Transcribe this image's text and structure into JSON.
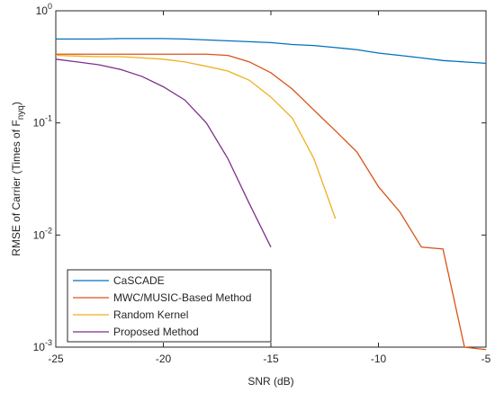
{
  "chart_data": {
    "type": "line",
    "xlabel": "SNR (dB)",
    "ylabel": [
      "RMSE of Carrier (Times of F",
      "nyq",
      ")"
    ],
    "x": [
      -25,
      -24,
      -23,
      -22,
      -21,
      -20,
      -19,
      -18,
      -17,
      -16,
      -15,
      -14,
      -13,
      -12,
      -11,
      -10,
      -9,
      -8,
      -7,
      -6,
      -5
    ],
    "series": [
      {
        "name": "CaSCADE",
        "color": "#0072bd",
        "values": [
          0.56,
          0.56,
          0.56,
          0.565,
          0.565,
          0.565,
          0.56,
          0.55,
          0.54,
          0.53,
          0.52,
          0.5,
          0.49,
          0.47,
          0.45,
          0.42,
          0.4,
          0.38,
          0.36,
          0.35,
          0.34
        ]
      },
      {
        "name": "MWC/MUSIC-Based Method",
        "color": "#d95319",
        "values": [
          0.41,
          0.41,
          0.41,
          0.41,
          0.41,
          0.41,
          0.41,
          0.41,
          0.4,
          0.35,
          0.28,
          0.2,
          0.13,
          0.085,
          0.055,
          0.027,
          0.016,
          0.0078,
          0.0075,
          0.001,
          0.00095
        ]
      },
      {
        "name": "Random Kernel",
        "color": "#edb120",
        "values": [
          0.4,
          0.395,
          0.39,
          0.39,
          0.38,
          0.37,
          0.35,
          0.32,
          0.29,
          0.24,
          0.17,
          0.11,
          0.048,
          0.014,
          null,
          null,
          null,
          null,
          null,
          null,
          null
        ]
      },
      {
        "name": "Proposed Method",
        "color": "#7e2f8e",
        "values": [
          0.37,
          0.35,
          0.33,
          0.3,
          0.26,
          0.21,
          0.16,
          0.1,
          0.048,
          0.019,
          0.0078,
          null,
          null,
          null,
          null,
          null,
          null,
          null,
          null,
          null,
          null
        ]
      }
    ],
    "xlim": [
      -25,
      -5
    ],
    "xticks": [
      -25,
      -20,
      -15,
      -10,
      -5
    ],
    "ylim": [
      0.001,
      1
    ],
    "yticks": [
      {
        "value": 0.001,
        "label": "10^-3"
      },
      {
        "value": 0.01,
        "label": "10^-2"
      },
      {
        "value": 0.1,
        "label": "10^-1"
      },
      {
        "value": 1,
        "label": "10^0"
      }
    ],
    "log_y": true,
    "legend": "lower left"
  }
}
